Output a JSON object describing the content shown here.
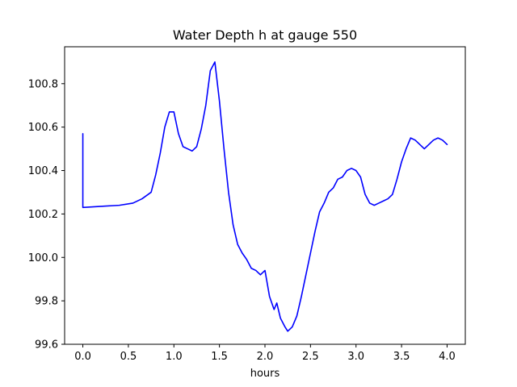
{
  "chart_data": {
    "type": "line",
    "title": "Water Depth h at gauge 550",
    "xlabel": "hours",
    "ylabel": "",
    "xlim": [
      -0.2,
      4.2
    ],
    "ylim": [
      99.6,
      100.97
    ],
    "xticks": [
      0.0,
      0.5,
      1.0,
      1.5,
      2.0,
      2.5,
      3.0,
      3.5,
      4.0
    ],
    "xtick_labels": [
      "0.0",
      "0.5",
      "1.0",
      "1.5",
      "2.0",
      "2.5",
      "3.0",
      "3.5",
      "4.0"
    ],
    "yticks": [
      99.6,
      99.8,
      100.0,
      100.2,
      100.4,
      100.6,
      100.8
    ],
    "ytick_labels": [
      "99.6",
      "99.8",
      "100.0",
      "100.2",
      "100.4",
      "100.6",
      "100.8"
    ],
    "grid": false,
    "series": [
      {
        "color": "#0000ff",
        "x": [
          0.0,
          0.0,
          0.2,
          0.4,
          0.55,
          0.65,
          0.75,
          0.8,
          0.85,
          0.9,
          0.95,
          1.0,
          1.05,
          1.1,
          1.15,
          1.2,
          1.25,
          1.3,
          1.35,
          1.4,
          1.45,
          1.5,
          1.55,
          1.6,
          1.65,
          1.7,
          1.75,
          1.8,
          1.85,
          1.9,
          1.95,
          2.0,
          2.05,
          2.1,
          2.13,
          2.17,
          2.22,
          2.25,
          2.3,
          2.35,
          2.4,
          2.45,
          2.5,
          2.55,
          2.6,
          2.65,
          2.7,
          2.75,
          2.8,
          2.85,
          2.9,
          2.95,
          3.0,
          3.05,
          3.1,
          3.15,
          3.2,
          3.25,
          3.3,
          3.35,
          3.4,
          3.45,
          3.5,
          3.55,
          3.6,
          3.65,
          3.7,
          3.75,
          3.8,
          3.85,
          3.9,
          3.95,
          4.0
        ],
        "y": [
          100.57,
          100.23,
          100.235,
          100.24,
          100.25,
          100.27,
          100.3,
          100.38,
          100.48,
          100.6,
          100.67,
          100.67,
          100.57,
          100.51,
          100.5,
          100.49,
          100.51,
          100.59,
          100.7,
          100.86,
          100.9,
          100.72,
          100.5,
          100.3,
          100.15,
          100.06,
          100.02,
          99.99,
          99.95,
          99.94,
          99.92,
          99.94,
          99.82,
          99.76,
          99.79,
          99.72,
          99.68,
          99.66,
          99.68,
          99.73,
          99.82,
          99.92,
          100.02,
          100.12,
          100.21,
          100.25,
          100.3,
          100.32,
          100.36,
          100.37,
          100.4,
          100.41,
          100.4,
          100.37,
          100.29,
          100.25,
          100.24,
          100.25,
          100.26,
          100.27,
          100.29,
          100.36,
          100.44,
          100.5,
          100.55,
          100.54,
          100.52,
          100.5,
          100.52,
          100.54,
          100.55,
          100.54,
          100.52
        ]
      }
    ]
  }
}
